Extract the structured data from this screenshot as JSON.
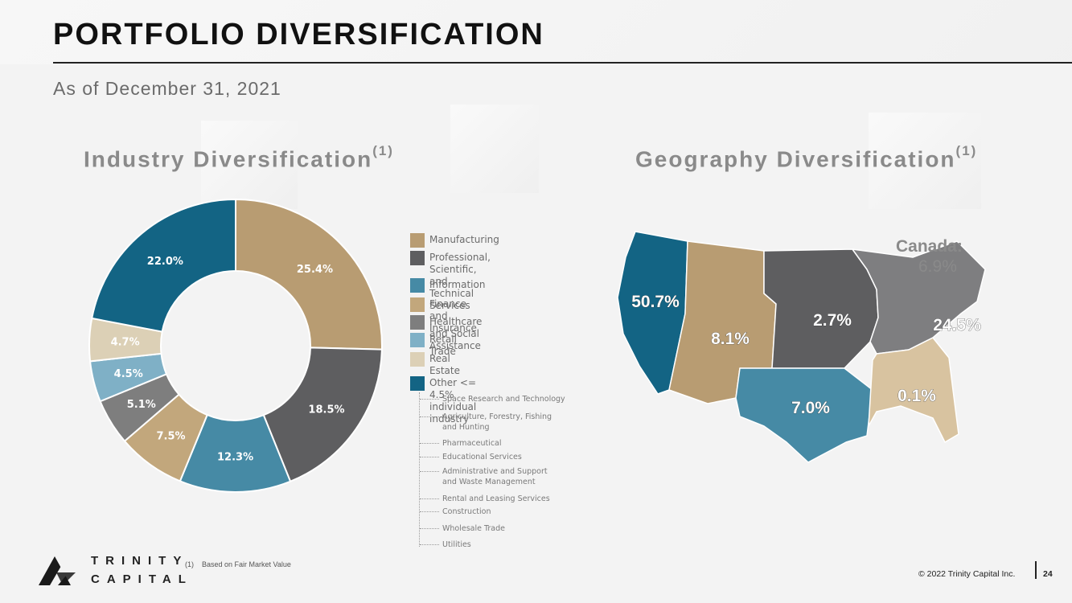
{
  "header": {
    "title": "PORTFOLIO DIVERSIFICATION",
    "subtitle": "As of December 31, 2021"
  },
  "sections": {
    "industry_title": "Industry Diversification",
    "industry_sup": "(1)",
    "geography_title": "Geography Diversification",
    "geography_sup": "(1)"
  },
  "colors": {
    "manufacturing": "#b89c72",
    "professional": "#5e5e60",
    "information": "#468aa5",
    "finance": "#c2a77c",
    "healthcare": "#7e7e7e",
    "retail": "#7fb0c6",
    "real_estate": "#dcd0b6",
    "other": "#136484"
  },
  "chart_data": [
    {
      "type": "pie",
      "title": "Industry Diversification",
      "categories": [
        "Manufacturing",
        "Professional, Scientific, and Technical Services",
        "Information",
        "Finance and Insurance",
        "Healthcare and Social Assistance",
        "Retail Trade",
        "Real Estate",
        "Other <= 4.5% individual industry"
      ],
      "values": [
        25.4,
        18.5,
        12.3,
        7.5,
        5.1,
        4.5,
        4.7,
        22.0
      ],
      "labels": [
        "25.4%",
        "18.5%",
        "12.3%",
        "7.5%",
        "5.1%",
        "4.5%",
        "4.7%",
        "22.0%"
      ],
      "legend": [
        {
          "label": "Manufacturing",
          "color": "#b89c72"
        },
        {
          "label": "Professional, Scientific,",
          "label2": "and Technical Services",
          "color": "#5e5e60"
        },
        {
          "label": "Information",
          "color": "#468aa5"
        },
        {
          "label": "Finance and Insurance",
          "color": "#c2a77c"
        },
        {
          "label": "Healthcare and Social Assistance",
          "color": "#7e7e7e"
        },
        {
          "label": "Retail Trade",
          "color": "#7fb0c6"
        },
        {
          "label": "Real Estate",
          "color": "#dcd0b6"
        },
        {
          "label": "Other <= 4.5% individual industry",
          "color": "#136484"
        }
      ],
      "other_breakdown": [
        "Space Research and Technology",
        "Agriculture, Forestry, Fishing|and Hunting",
        "Pharmaceutical",
        "Educational Services",
        "Administrative and Support|and Waste Management",
        "Rental and Leasing Services",
        "Construction",
        "Wholesale Trade",
        "Utilities"
      ]
    },
    {
      "type": "table",
      "title": "Geography Diversification",
      "regions": [
        {
          "value": "50.7%",
          "color": "#136484"
        },
        {
          "value": "8.1%",
          "color": "#b89c72"
        },
        {
          "value": "2.7%",
          "color": "#5e5e60"
        },
        {
          "value": "24.5%",
          "color": "#7e7e80"
        },
        {
          "value": "7.0%",
          "color": "#468aa5"
        },
        {
          "value": "0.1%",
          "color": "#d8c3a0"
        }
      ],
      "canada_label": "Canada:",
      "canada_value": "6.9%"
    }
  ],
  "footer": {
    "logo_line1": "TRINITY",
    "logo_line2": "CAPITAL",
    "footnote_num": "(1)",
    "footnote": "Based on Fair Market Value",
    "copyright": "© 2022 Trinity Capital Inc.",
    "page": "24"
  }
}
